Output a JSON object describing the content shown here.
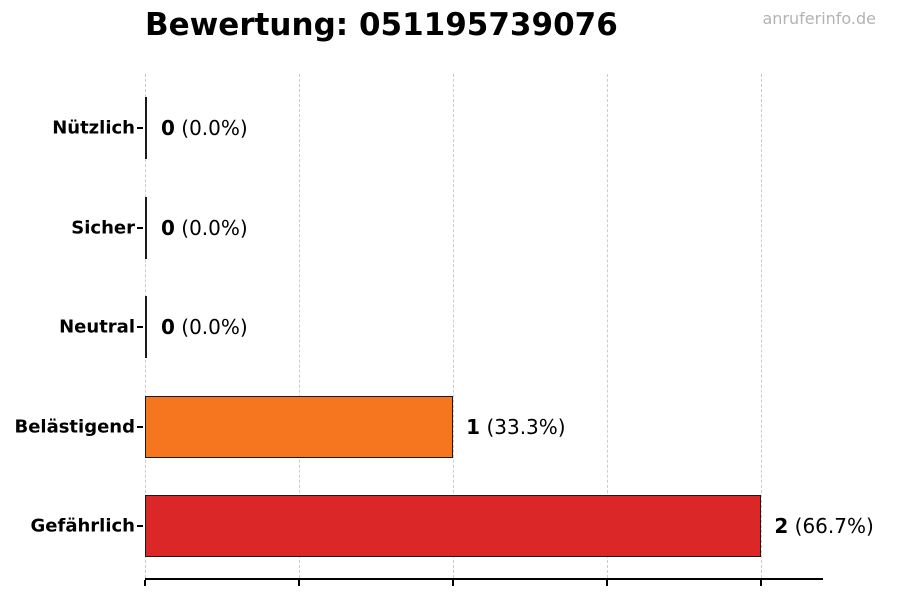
{
  "title": "Bewertung: 051195739076",
  "watermark": "anruferinfo.de",
  "colors": {
    "bar_harassing": "#f5761e",
    "bar_dangerous": "#db2727",
    "bar_border": "#1a1a1a",
    "gridline": "#cccccc",
    "axis": "#000000",
    "watermark_text": "#b3b3b3",
    "title_text": "#000000"
  },
  "chart_data": {
    "type": "bar",
    "orientation": "horizontal",
    "title": "Bewertung: 051195739076",
    "categories": [
      "Nützlich",
      "Sicher",
      "Neutral",
      "Belästigend",
      "Gefährlich"
    ],
    "values": [
      0,
      0,
      0,
      1,
      2
    ],
    "percent_labels": [
      "0.0%",
      "0.0%",
      "0.0%",
      "33.3%",
      "66.7%"
    ],
    "value_label_texts": [
      "0 (0.0%)",
      "0 (0.0%)",
      "0 (0.0%)",
      "1 (33.3%)",
      "2 (66.7%)"
    ],
    "bar_colors": [
      null,
      null,
      null,
      "#f5761e",
      "#db2727"
    ],
    "xlim": [
      0,
      2.2
    ],
    "xticks": [
      0,
      0.5,
      1,
      1.5,
      2
    ],
    "xticklabels_visible": false,
    "grid": "vertical-dashed",
    "legend": "none"
  }
}
